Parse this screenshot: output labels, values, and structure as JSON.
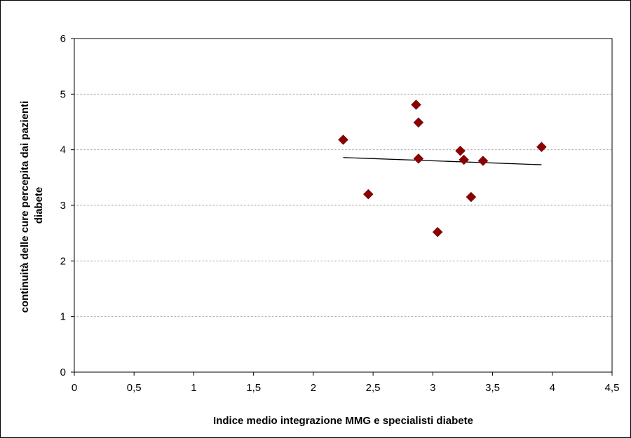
{
  "chart_data": {
    "type": "scatter",
    "title": "",
    "xlabel": "Indice medio integrazione MMG e specialisti diabete",
    "ylabel_lines": [
      "continuità delle cure percepita dai pazienti",
      "diabete"
    ],
    "xlim": [
      0,
      4.5
    ],
    "ylim": [
      0,
      6
    ],
    "x_ticks": [
      0,
      0.5,
      1,
      1.5,
      2,
      2.5,
      3,
      3.5,
      4,
      4.5
    ],
    "x_tick_labels": [
      "0",
      "0,5",
      "1",
      "1,5",
      "2",
      "2,5",
      "3",
      "3,5",
      "4",
      "4,5"
    ],
    "y_ticks": [
      0,
      1,
      2,
      3,
      4,
      5,
      6
    ],
    "y_tick_labels": [
      "0",
      "1",
      "2",
      "3",
      "4",
      "5",
      "6"
    ],
    "grid": "horizontal",
    "marker_color": "#8B0000",
    "trendline_color": "#000000",
    "points": [
      {
        "x": 2.25,
        "y": 4.18
      },
      {
        "x": 2.46,
        "y": 3.2
      },
      {
        "x": 2.86,
        "y": 4.81
      },
      {
        "x": 2.88,
        "y": 4.49
      },
      {
        "x": 2.88,
        "y": 3.84
      },
      {
        "x": 3.04,
        "y": 2.52
      },
      {
        "x": 3.23,
        "y": 3.98
      },
      {
        "x": 3.26,
        "y": 3.82
      },
      {
        "x": 3.32,
        "y": 3.15
      },
      {
        "x": 3.42,
        "y": 3.8
      },
      {
        "x": 3.91,
        "y": 4.05
      }
    ],
    "trendline": {
      "x": [
        2.25,
        3.91
      ],
      "y": [
        3.86,
        3.73
      ]
    }
  }
}
